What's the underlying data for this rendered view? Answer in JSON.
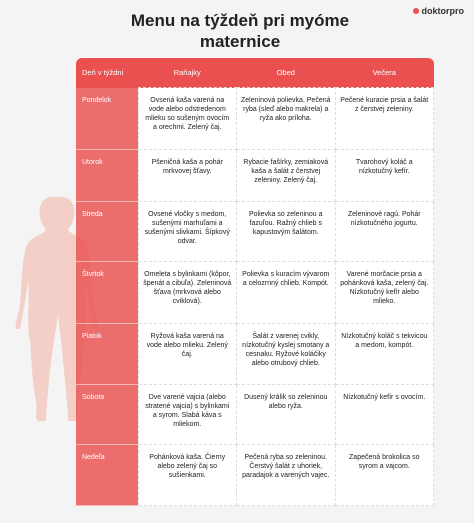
{
  "header": {
    "title": "Menu na týždeň pri myóme maternice",
    "logo": "doktorpro"
  },
  "table": {
    "columns": [
      "Deň v týždni",
      "Raňajky",
      "Obed",
      "Večera"
    ],
    "rows": [
      [
        "Pondelok",
        "Ovsená kaša varená na vode alebo odstredenom mlieku so sušeným ovocím a orechmi. Zelený čaj.",
        "Zeleninová polievka. Pečená ryba (sleď alebo makrela) a ryža ako príloha.",
        "Pečené kuracie prsia a šalát z čerstvej zeleniny."
      ],
      [
        "Utorok",
        "Pšeničná kaša a pohár mrkvovej šťavy.",
        "Rybacie fašírky, zemiaková kaša a šalát z čerstvej zeleniny. Zelený čaj.",
        "Tvarohový koláč a nízkotučný kefír."
      ],
      [
        "Streda",
        "Ovsené vločky s medom, sušenými marhuľami a sušenými slivkami. Šípkový odvar.",
        "Polievka so zeleninou a fazuľou. Ražný chlieb s kapustovým šalátom.",
        "Zeleninové ragú. Pohár nízkotučného jogurtu."
      ],
      [
        "Štvrtok",
        "Omeleta s bylinkami (kôpor, špenát a cibuľa). Zeleninová šťava (mrkvová alebo cviklová).",
        "Polievka s kuracím vývarom a celozrnný chlieb. Kompót.",
        "Varené morčacie prsia a pohánková kaša, zelený čaj. Nízkotučný kefír alebo mlieko."
      ],
      [
        "Piatok",
        "Ryžová kaša varená na vode alebo mlieku. Zelený čaj.",
        "Šalát z varenej cvikly, nízkotučný kyslej smotany a cesnaku. Ryžové koláčiky alebo otrubový chlieb.",
        "Nízkotučný koláč s tekvicou a medom, kompót."
      ],
      [
        "Sobota",
        "Dve varené vajcia (alebo stratené vajcia) s bylinkami a syrom. Slabá káva s mliekom.",
        "Dusený králik so zeleninou alebo ryža.",
        "Nízkotučný kefír s ovocím."
      ],
      [
        "Nedeľa",
        "Pohánková kaša. Čierny alebo zelený čaj so sušienkami.",
        "Pečená ryba so zeleninou. Čerstvý šalát z uhoriek, paradajok a varených vajec.",
        "Zapečená brokolica so syrom a vajcom."
      ]
    ]
  }
}
